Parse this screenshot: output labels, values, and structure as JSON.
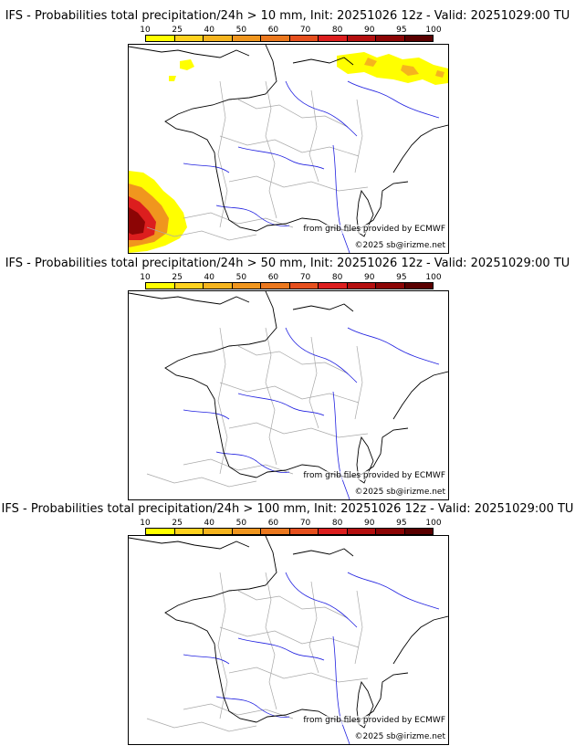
{
  "legend": {
    "ticks": [
      "10",
      "25",
      "40",
      "50",
      "60",
      "70",
      "80",
      "90",
      "95",
      "100"
    ],
    "colors": [
      "#ffff00",
      "#ffd21e",
      "#f5b41e",
      "#f0961e",
      "#eb781e",
      "#e6501e",
      "#dc1e1e",
      "#b40f0f",
      "#8c0505",
      "#5a0000"
    ]
  },
  "colors": {
    "border": "#000000",
    "rivers": "#2020e0",
    "admin": "#a8a8a8"
  },
  "panels": [
    {
      "title": "IFS - Probabilities total precipitation/24h > 10 mm, Init: 20251026 12z - Valid: 20251029:00 TU",
      "credit_grib": "from grib files provided by ECMWF",
      "credit_copy": "©2025 sb@irizme.net"
    },
    {
      "title": "IFS - Probabilities total precipitation/24h > 50 mm, Init: 20251026 12z - Valid: 20251029:00 TU",
      "credit_grib": "from grib files provided by ECMWF",
      "credit_copy": "©2025 sb@irizme.net"
    },
    {
      "title": "IFS - Probabilities total precipitation/24h > 100 mm, Init: 20251026 12z - Valid: 20251029:00 TU",
      "credit_grib": "from grib files provided by ECMWF",
      "credit_copy": "©2025 sb@irizme.net"
    }
  ]
}
